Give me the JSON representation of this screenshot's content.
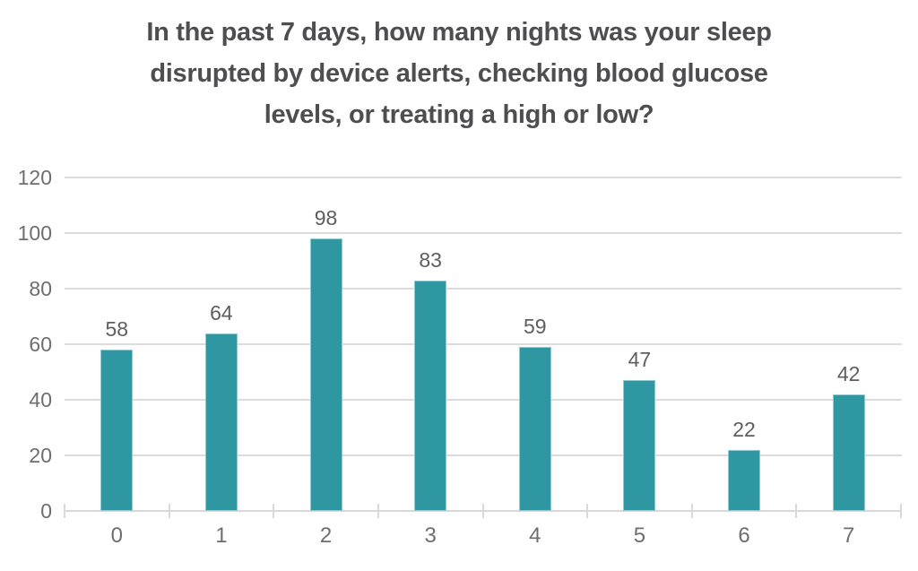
{
  "title_lines": [
    "In the past 7 days, how many nights was your sleep",
    "disrupted by device alerts, checking blood glucose",
    "levels, or treating a high or low?"
  ],
  "colors": {
    "bar": "#2F97A1",
    "bar_edge": "#8FCBD0",
    "gridline": "#DCDCDC",
    "axis": "#D9D9D9",
    "tick_label": "#6E6E6E",
    "data_label": "#5E5E5E",
    "title": "#4E4E50",
    "background": "#FFFFFF"
  },
  "chart_data": {
    "type": "bar",
    "title": "In the past 7 days, how many nights was your sleep disrupted by device alerts, checking blood glucose levels, or treating a high or low?",
    "categories": [
      "0",
      "1",
      "2",
      "3",
      "4",
      "5",
      "6",
      "7"
    ],
    "values": [
      58,
      64,
      98,
      83,
      59,
      47,
      22,
      42
    ],
    "data_labels": [
      "58",
      "64",
      "98",
      "83",
      "59",
      "47",
      "22",
      "42"
    ],
    "xlabel": "",
    "ylabel": "",
    "ylim": [
      0,
      120
    ],
    "ytick_step": 20,
    "ytick_labels": [
      "0",
      "20",
      "40",
      "60",
      "80",
      "100",
      "120"
    ],
    "grid": "horizontal-only",
    "legend": "none",
    "bar_color": "#2F97A1"
  }
}
